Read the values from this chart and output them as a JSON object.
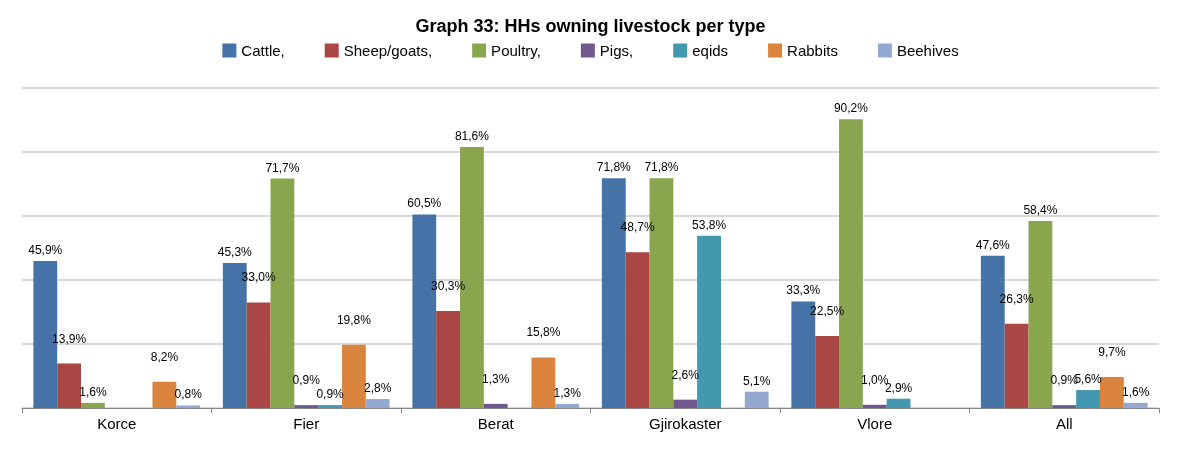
{
  "chart_data": {
    "type": "bar",
    "title": "Graph 33: HHs owning livestock per type",
    "categories": [
      "Korce",
      "Fier",
      "Berat",
      "Gjirokaster",
      "Vlore",
      "All"
    ],
    "series": [
      {
        "name": "Cattle,",
        "color": "#4572a7",
        "values": [
          45.9,
          45.3,
          60.5,
          71.8,
          33.3,
          47.6
        ],
        "value_labels": [
          "45,9%",
          "45,3%",
          "60,5%",
          "71,8%",
          "33,3%",
          "47,6%"
        ]
      },
      {
        "name": "Sheep/goats,",
        "color": "#aa4643",
        "values": [
          13.9,
          33.0,
          30.3,
          48.7,
          22.5,
          26.3
        ],
        "value_labels": [
          "13,9%",
          "33,0%",
          "30,3%",
          "48,7%",
          "22,5%",
          "26,3%"
        ]
      },
      {
        "name": "Poultry,",
        "color": "#89a54e",
        "values": [
          1.6,
          71.7,
          81.6,
          71.8,
          90.2,
          58.4
        ],
        "value_labels": [
          "1,6%",
          "71,7%",
          "81,6%",
          "71,8%",
          "90,2%",
          "58,4%"
        ]
      },
      {
        "name": "Pigs,",
        "color": "#71588f",
        "values": [
          null,
          0.9,
          1.3,
          2.6,
          1.0,
          0.9
        ],
        "value_labels": [
          null,
          "0,9%",
          "1,3%",
          "2,6%",
          "1,0%",
          "0,9%"
        ]
      },
      {
        "name": "eqids",
        "color": "#4198af",
        "values": [
          null,
          0.9,
          null,
          53.8,
          2.9,
          5.6
        ],
        "value_labels": [
          null,
          "0,9%",
          null,
          "53,8%",
          "2,9%",
          "5,6%"
        ]
      },
      {
        "name": "Rabbits",
        "color": "#db843d",
        "values": [
          8.2,
          19.8,
          15.8,
          null,
          null,
          9.7
        ],
        "value_labels": [
          "8,2%",
          "19,8%",
          "15,8%",
          null,
          null,
          "9,7%"
        ]
      },
      {
        "name": "Beehives",
        "color": "#93a9cf",
        "values": [
          0.8,
          2.8,
          1.3,
          5.1,
          null,
          1.6
        ],
        "value_labels": [
          "0,8%",
          "2,8%",
          "1,3%",
          "5,1%",
          null,
          "1,6%"
        ]
      }
    ],
    "ylim": [
      0,
      100
    ],
    "yticks": [
      {
        "value": 0,
        "label": null
      },
      {
        "value": 20,
        "label": null
      },
      {
        "value": 40,
        "label": null
      },
      {
        "value": 60,
        "label": null
      },
      {
        "value": 80,
        "label": null
      },
      {
        "value": 100,
        "label": null
      }
    ],
    "tick_labels": "x",
    "grid": "y",
    "legend": "top"
  }
}
